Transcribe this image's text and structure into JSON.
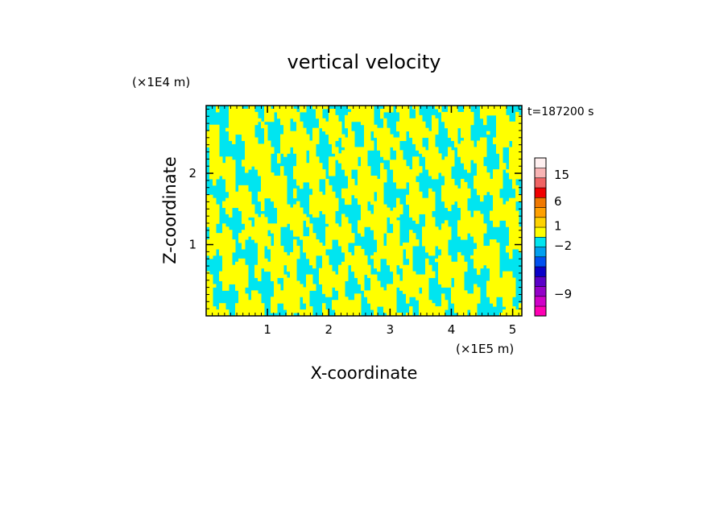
{
  "chart_data": {
    "type": "heatmap",
    "title": "vertical velocity",
    "xlabel": "X-coordinate",
    "ylabel": "Z-coordinate",
    "x_unit": "(×1E5 m)",
    "y_unit": "(×1E4 m)",
    "time_label": "t=187200 s",
    "xlim": [
      0,
      5.15
    ],
    "ylim": [
      0,
      2.95
    ],
    "x_ticks": [
      {
        "value": 1,
        "label": "1"
      },
      {
        "value": 2,
        "label": "2"
      },
      {
        "value": 3,
        "label": "3"
      },
      {
        "value": 4,
        "label": "4"
      },
      {
        "value": 5,
        "label": "5"
      }
    ],
    "y_ticks": [
      {
        "value": 1,
        "label": "1"
      },
      {
        "value": 2,
        "label": "2"
      }
    ],
    "field_colors": {
      "positive": "#ffff00",
      "negative": "#00e5f0"
    },
    "colorbar": {
      "levels": [
        {
          "color": "#ff00b4"
        },
        {
          "color": "#d000c8"
        },
        {
          "color": "#9400c8"
        },
        {
          "color": "#5a00c8"
        },
        {
          "color": "#0a00c8"
        },
        {
          "color": "#0050f0"
        },
        {
          "color": "#00a0f0"
        },
        {
          "color": "#00e5f0"
        },
        {
          "color": "#ffff00"
        },
        {
          "color": "#ffd200"
        },
        {
          "color": "#ffa000"
        },
        {
          "color": "#f07800"
        },
        {
          "color": "#f00000"
        },
        {
          "color": "#f06464"
        },
        {
          "color": "#f8b4b4"
        },
        {
          "color": "#fff0f0"
        }
      ],
      "tick_labels": [
        {
          "text": "15",
          "level_boundary": 14.3
        },
        {
          "text": "6",
          "level_boundary": 11.6
        },
        {
          "text": "1",
          "level_boundary": 9.1
        },
        {
          "text": "−2",
          "level_boundary": 7.1
        },
        {
          "text": "−9",
          "level_boundary": 2.2
        }
      ]
    }
  }
}
